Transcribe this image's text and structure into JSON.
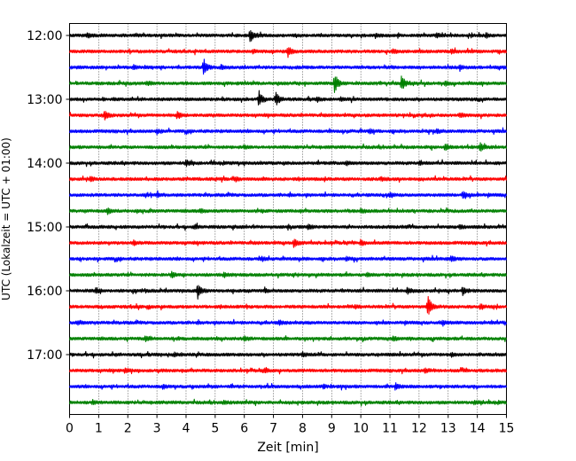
{
  "chart_data": {
    "type": "line",
    "title": "",
    "xlabel": "Zeit  [min]",
    "ylabel": "UTC (Lokalzeit = UTC + 01:00)",
    "xlim": [
      0,
      15
    ],
    "x_ticks": [
      "0",
      "1",
      "2",
      "3",
      "4",
      "5",
      "6",
      "7",
      "8",
      "9",
      "10",
      "11",
      "12",
      "13",
      "14",
      "15"
    ],
    "y_ticks": [
      "12:00",
      "13:00",
      "14:00",
      "15:00",
      "16:00",
      "17:00"
    ],
    "grid": "vertical dotted lines at each minute",
    "colors": [
      "#000000",
      "#ff0000",
      "#0000ff",
      "#008000"
    ],
    "series_minutes": 15,
    "traces": [
      {
        "start": "12:00",
        "color": "#000000",
        "events": [
          [
            0.6,
            0.2
          ],
          [
            6.2,
            0.75
          ],
          [
            10.5,
            0.2
          ],
          [
            12.6,
            0.25
          ],
          [
            14.3,
            0.2
          ]
        ]
      },
      {
        "start": "12:15",
        "color": "#ff0000",
        "events": [
          [
            7.5,
            0.55
          ],
          [
            6.3,
            0.2
          ],
          [
            11.1,
            0.2
          ],
          [
            13.1,
            0.2
          ]
        ]
      },
      {
        "start": "12:30",
        "color": "#0000ff",
        "events": [
          [
            2.2,
            0.2
          ],
          [
            4.6,
            0.95
          ],
          [
            5.2,
            0.2
          ],
          [
            13.4,
            0.2
          ]
        ]
      },
      {
        "start": "12:45",
        "color": "#008000",
        "events": [
          [
            2.7,
            0.2
          ],
          [
            9.1,
            1.0
          ],
          [
            11.4,
            0.85
          ],
          [
            12.9,
            0.2
          ]
        ]
      },
      {
        "start": "13:00",
        "color": "#000000",
        "events": [
          [
            6.5,
            0.85
          ],
          [
            7.1,
            0.75
          ],
          [
            8.5,
            0.2
          ],
          [
            9.3,
            0.2
          ]
        ]
      },
      {
        "start": "13:15",
        "color": "#ff0000",
        "events": [
          [
            1.2,
            0.55
          ],
          [
            3.7,
            0.45
          ],
          [
            13.4,
            0.2
          ]
        ]
      },
      {
        "start": "13:30",
        "color": "#0000ff",
        "events": [
          [
            3.0,
            0.2
          ],
          [
            10.3,
            0.2
          ],
          [
            12.6,
            0.2
          ]
        ]
      },
      {
        "start": "13:45",
        "color": "#008000",
        "events": [
          [
            12.9,
            0.35
          ],
          [
            14.1,
            0.5
          ],
          [
            6.0,
            0.2
          ]
        ]
      },
      {
        "start": "14:00",
        "color": "#000000",
        "events": [
          [
            4.0,
            0.3
          ],
          [
            9.5,
            0.2
          ],
          [
            12.0,
            0.2
          ]
        ]
      },
      {
        "start": "14:15",
        "color": "#ff0000",
        "events": [
          [
            0.7,
            0.2
          ],
          [
            5.7,
            0.2
          ],
          [
            10.7,
            0.2
          ]
        ]
      },
      {
        "start": "14:30",
        "color": "#0000ff",
        "events": [
          [
            3.0,
            0.25
          ],
          [
            13.5,
            0.4
          ],
          [
            11.0,
            0.2
          ]
        ]
      },
      {
        "start": "14:45",
        "color": "#008000",
        "events": [
          [
            1.3,
            0.3
          ],
          [
            4.5,
            0.2
          ],
          [
            10.0,
            0.2
          ]
        ]
      },
      {
        "start": "15:00",
        "color": "#000000",
        "events": [
          [
            4.3,
            0.25
          ],
          [
            8.2,
            0.25
          ],
          [
            13.4,
            0.2
          ]
        ]
      },
      {
        "start": "15:15",
        "color": "#ff0000",
        "events": [
          [
            7.7,
            0.45
          ],
          [
            10.0,
            0.25
          ],
          [
            2.2,
            0.2
          ]
        ]
      },
      {
        "start": "15:30",
        "color": "#0000ff",
        "events": [
          [
            13.1,
            0.3
          ],
          [
            6.6,
            0.2
          ],
          [
            9.5,
            0.2
          ]
        ]
      },
      {
        "start": "15:45",
        "color": "#008000",
        "events": [
          [
            3.5,
            0.35
          ],
          [
            5.3,
            0.25
          ],
          [
            10.2,
            0.2
          ]
        ]
      },
      {
        "start": "16:00",
        "color": "#000000",
        "events": [
          [
            0.9,
            0.3
          ],
          [
            4.4,
            0.85
          ],
          [
            11.6,
            0.4
          ],
          [
            13.5,
            0.45
          ],
          [
            6.7,
            0.2
          ]
        ]
      },
      {
        "start": "16:15",
        "color": "#ff0000",
        "events": [
          [
            12.3,
            1.2
          ],
          [
            14.1,
            0.3
          ],
          [
            9.8,
            0.2
          ]
        ]
      },
      {
        "start": "16:30",
        "color": "#0000ff",
        "events": [
          [
            0.3,
            0.2
          ],
          [
            7.2,
            0.2
          ],
          [
            12.8,
            0.2
          ]
        ]
      },
      {
        "start": "16:45",
        "color": "#008000",
        "events": [
          [
            2.6,
            0.25
          ],
          [
            11.1,
            0.25
          ],
          [
            6.0,
            0.2
          ]
        ]
      },
      {
        "start": "17:00",
        "color": "#000000",
        "events": [
          [
            3.6,
            0.2
          ],
          [
            8.0,
            0.2
          ],
          [
            13.1,
            0.2
          ]
        ]
      },
      {
        "start": "17:15",
        "color": "#ff0000",
        "events": [
          [
            1.9,
            0.2
          ],
          [
            6.7,
            0.2
          ],
          [
            12.2,
            0.2
          ]
        ]
      },
      {
        "start": "17:30",
        "color": "#0000ff",
        "events": [
          [
            11.2,
            0.3
          ],
          [
            3.2,
            0.2
          ],
          [
            8.7,
            0.2
          ]
        ]
      },
      {
        "start": "17:45",
        "color": "#008000",
        "events": [
          [
            0.8,
            0.2
          ],
          [
            5.3,
            0.2
          ],
          [
            13.9,
            0.2
          ]
        ]
      }
    ]
  }
}
